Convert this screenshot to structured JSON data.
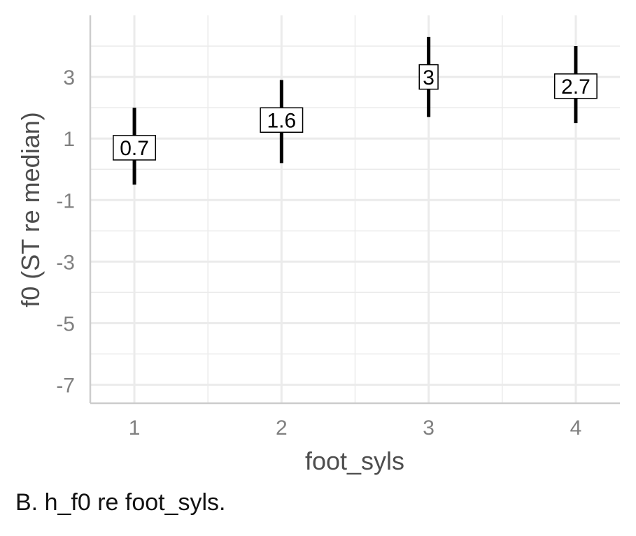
{
  "chart_data": {
    "type": "errorbar",
    "xlabel": "foot_syls",
    "ylabel": "f0 (ST re median)",
    "categories": [
      "1",
      "2",
      "3",
      "4"
    ],
    "series": [
      {
        "values": [
          0.7,
          1.6,
          3.0,
          2.7
        ],
        "labels": [
          "0.7",
          "1.6",
          "3",
          "2.7"
        ],
        "lower": [
          -0.5,
          0.2,
          1.7,
          1.5
        ],
        "upper": [
          2.0,
          2.9,
          4.3,
          4.0
        ]
      }
    ],
    "yticks": [
      -7,
      -5,
      -3,
      -1,
      1,
      3
    ],
    "ylim": [
      -7.6,
      5.0
    ],
    "xlim": [
      0.7,
      4.3
    ],
    "grid": true,
    "colors": {
      "grid": "#ebebeb",
      "axis": "#cccccc",
      "tick_text": "#808080",
      "axis_title": "#4d4d4d",
      "mark": "#000000"
    }
  },
  "caption": "B.  h_f0 re foot_syls."
}
